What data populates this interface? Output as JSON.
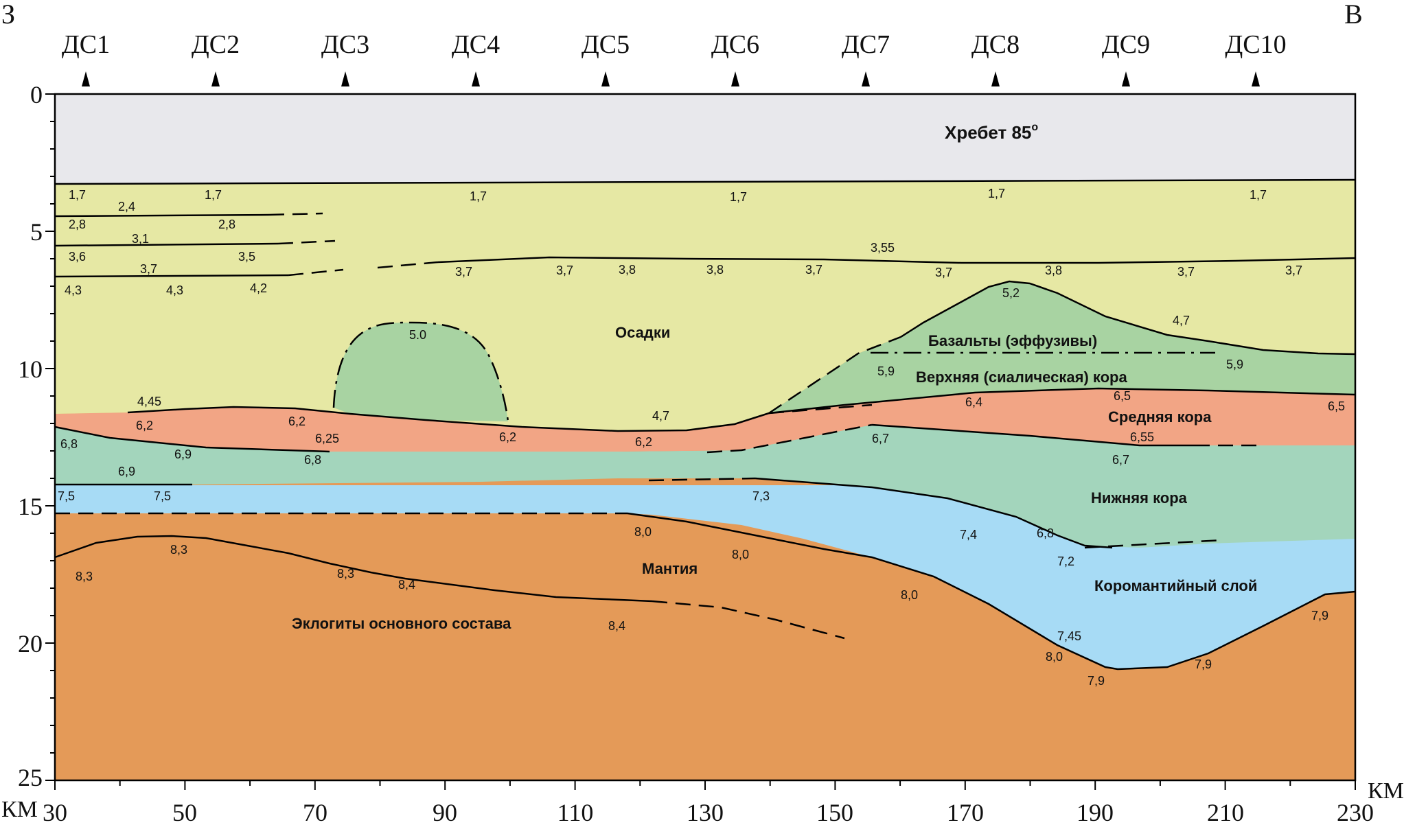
{
  "direction": {
    "west": "З",
    "east": "В"
  },
  "units": {
    "left": "КМ",
    "right": "КМ"
  },
  "stations": [
    "ДС1",
    "ДС2",
    "ДС3",
    "ДС4",
    "ДС5",
    "ДС6",
    "ДС7",
    "ДС8",
    "ДС9",
    "ДС10"
  ],
  "x_ticks": [
    "30",
    "50",
    "70",
    "90",
    "110",
    "130",
    "150",
    "170",
    "190",
    "210",
    "230"
  ],
  "y_ticks": [
    "0",
    "5",
    "10",
    "15",
    "20",
    "25"
  ],
  "layers": {
    "ridge": "Хребет 85",
    "ridge_degree": "о",
    "sediments": "Осадки",
    "basalts": "Базальты (эффузивы)",
    "upper_crust": "Верхняя (сиалическая) кора",
    "middle_crust": "Средняя кора",
    "lower_crust": "Нижняя кора",
    "crust_mantle": "Коромантийный слой",
    "mantle": "Мантия",
    "eclogites": "Эклогиты основного состава"
  },
  "velocities": [
    "1,7",
    "2,4",
    "1,7",
    "1,7",
    "1,7",
    "1,7",
    "1,7",
    "2,8",
    "2,8",
    "3,1",
    "3,6",
    "3,5",
    "3,55",
    "3,7",
    "3,7",
    "3,7",
    "3,8",
    "3,8",
    "3,7",
    "3,7",
    "3,8",
    "3,7",
    "3,7",
    "4,3",
    "4,3",
    "4,2",
    "5,2",
    "4,7",
    "5.0",
    "5,9",
    "5,9",
    "4,45",
    "4,7",
    "6,2",
    "6,2",
    "6,2",
    "6,2",
    "6,25",
    "6,4",
    "6,5",
    "6,5",
    "6,55",
    "6,8",
    "6,9",
    "6,9",
    "6,8",
    "6,7",
    "6,7",
    "7,5",
    "7,5",
    "7,3",
    "7,4",
    "6,8",
    "7,2",
    "8,3",
    "8,3",
    "8,3",
    "8,4",
    "8,0",
    "8,0",
    "8,4",
    "8,0",
    "7,45",
    "8,0",
    "7,9",
    "7,9",
    "7,9"
  ],
  "colors": {
    "ridge": "#e8e8ec",
    "sediments": "#e6e8a4",
    "basalt": "#a8d3a2",
    "middle_crust": "#f2a585",
    "lower_crust": "#a3d5bc",
    "crust_mantle": "#a7dbf5",
    "mantle": "#e49a58"
  }
}
